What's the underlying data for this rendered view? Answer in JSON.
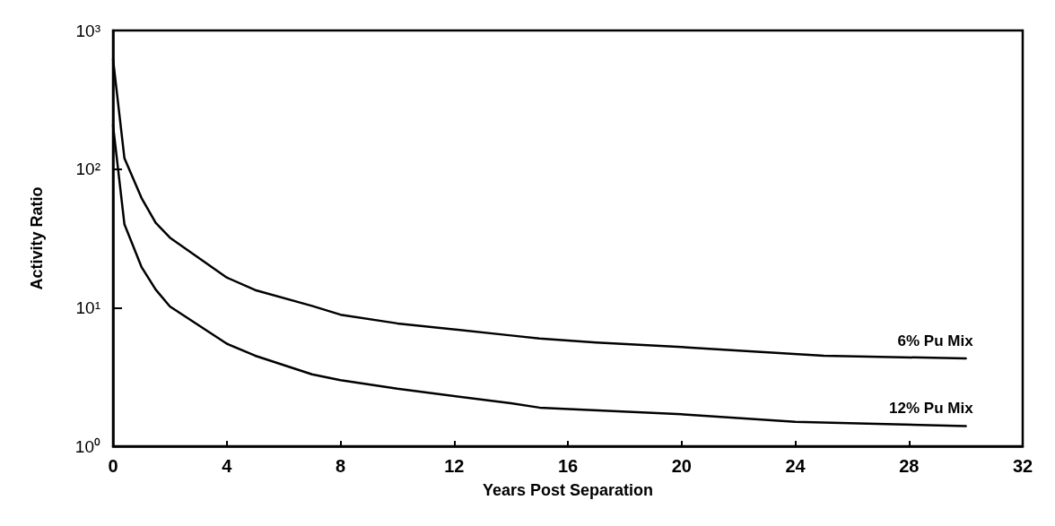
{
  "chart_data": {
    "type": "line",
    "xlabel": "Years Post Separation",
    "ylabel": "Activity Ratio",
    "log": "y",
    "xlim": [
      0,
      32
    ],
    "xticks": [
      0,
      4,
      8,
      12,
      16,
      20,
      24,
      28,
      32
    ],
    "ylim": [
      1,
      1000
    ],
    "yticks": [
      {
        "value": 1,
        "label": "10⁰"
      },
      {
        "value": 10,
        "label": "10¹"
      },
      {
        "value": 100,
        "label": "10²"
      },
      {
        "value": 1000,
        "label": "10³"
      }
    ],
    "grid": false,
    "legend": false,
    "marker": "none",
    "line_style": "solid",
    "series": [
      {
        "name": "6% Pu Mix",
        "color": "#000000",
        "x": [
          0,
          0.4,
          1,
          1.5,
          2,
          4,
          5,
          7,
          8,
          10,
          14,
          15,
          17,
          20,
          22,
          25,
          30
        ],
        "values": [
          620,
          120,
          62,
          41,
          32,
          16.5,
          13.4,
          10.3,
          8.9,
          7.7,
          6.3,
          6,
          5.6,
          5.2,
          4.9,
          4.5,
          4.3
        ]
      },
      {
        "name": "12% Pu Mix",
        "color": "#000000",
        "x": [
          0,
          0.4,
          1,
          1.5,
          2,
          4,
          5,
          7,
          8,
          10,
          14,
          15,
          20,
          24,
          30
        ],
        "values": [
          207,
          40,
          19.7,
          13.5,
          10.2,
          5.5,
          4.5,
          3.3,
          3,
          2.6,
          2.04,
          1.9,
          1.7,
          1.5,
          1.4
        ]
      }
    ]
  }
}
